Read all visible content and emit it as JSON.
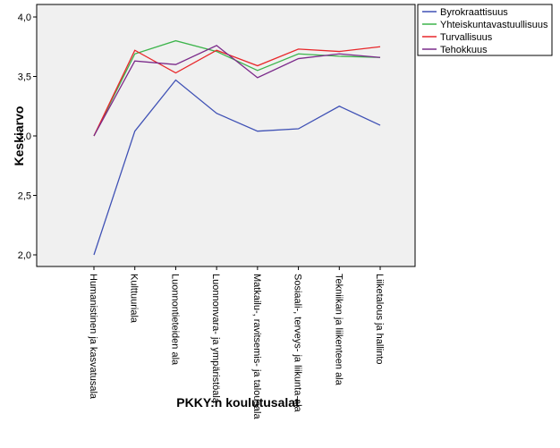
{
  "chart_data": {
    "type": "line",
    "title": "",
    "xlabel": "PKKY:n koulutusalat",
    "ylabel": "Keskiarvo",
    "ylim": [
      2.0,
      4.0
    ],
    "yticks": [
      "2,0",
      "2,5",
      "3,0",
      "3,5",
      "4,0"
    ],
    "yticks_values": [
      2.0,
      2.5,
      3.0,
      3.5,
      4.0
    ],
    "grid": false,
    "legend_position": "top-right",
    "categories": [
      "Humanistinen ja kasvatusala",
      "Kulttuuriala",
      "Luonnontieteiden ala",
      "Luonnonvara- ja ympäristöala",
      "Matkailu-, ravitsemis- ja talousala",
      "Sosiaali-, terveys- ja liikunta-ala",
      "Tekniikan ja liikenteen ala",
      "Liiketalous ja hallinto"
    ],
    "series": [
      {
        "name": "Byrokraattisuus",
        "color": "#3f51b5",
        "values": [
          2.0,
          3.04,
          3.47,
          3.19,
          3.04,
          3.06,
          3.25,
          3.09
        ]
      },
      {
        "name": "Yhteiskuntavastuullisuus",
        "color": "#3cb44b",
        "values": [
          3.0,
          3.69,
          3.8,
          3.71,
          3.55,
          3.69,
          3.67,
          3.66
        ]
      },
      {
        "name": "Turvallisuus",
        "color": "#e8272a",
        "values": [
          3.0,
          3.72,
          3.53,
          3.72,
          3.59,
          3.73,
          3.71,
          3.75
        ]
      },
      {
        "name": "Tehokkuus",
        "color": "#7b2a8a",
        "values": [
          3.0,
          3.63,
          3.6,
          3.76,
          3.49,
          3.65,
          3.69,
          3.66
        ]
      }
    ]
  }
}
